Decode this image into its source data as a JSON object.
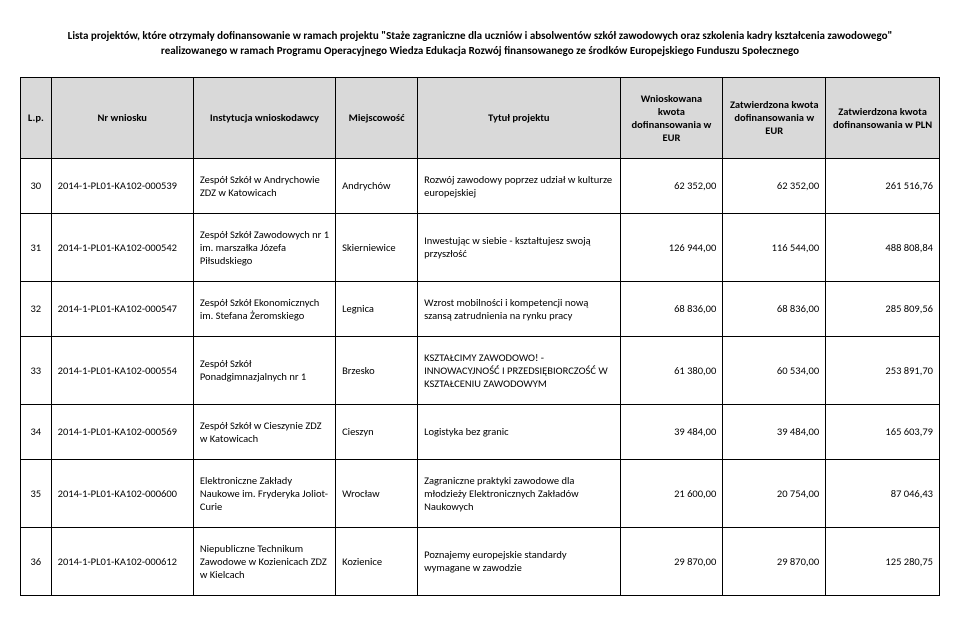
{
  "header": "Lista projektów, które otrzymały dofinansowanie w ramach projektu \"Staże zagraniczne dla uczniów i absolwentów szkół zawodowych oraz szkolenia kadry kształcenia zawodowego\" realizowanego w ramach Programu Operacyjnego Wiedza Edukacja Rozwój finansowanego ze środków Europejskiego Funduszu Społecznego",
  "columns": {
    "lp": "L.p.",
    "nr": "Nr wniosku",
    "inst": "Instytucja wnioskodawcy",
    "city": "Miejscowość",
    "title": "Tytuł projektu",
    "amt1": "Wnioskowana kwota dofinansowania w EUR",
    "amt2": "Zatwierdzona kwota dofinansowania w EUR",
    "amt3": "Zatwierdzona kwota dofinansowania w PLN"
  },
  "rows": [
    {
      "lp": "30",
      "nr": "2014-1-PL01-KA102-000539",
      "inst": "Zespół Szkół w Andrychowie ZDZ w Katowicach",
      "city": "Andrychów",
      "title": "Rozwój zawodowy poprzez udział w kulturze europejskiej",
      "a1": "62 352,00",
      "a2": "62 352,00",
      "a3": "261 516,76"
    },
    {
      "lp": "31",
      "nr": "2014-1-PL01-KA102-000542",
      "inst": "Zespół Szkół Zawodowych nr 1 im. marszałka Józefa Piłsudskiego",
      "city": "Skierniewice",
      "title": "Inwestując w siebie - kształtujesz swoją przyszłość",
      "a1": "126 944,00",
      "a2": "116 544,00",
      "a3": "488 808,84"
    },
    {
      "lp": "32",
      "nr": "2014-1-PL01-KA102-000547",
      "inst": "Zespół Szkół Ekonomicznych im. Stefana Żeromskiego",
      "city": "Legnica",
      "title": "Wzrost mobilności i kompetencji nową szansą zatrudnienia na rynku pracy",
      "a1": "68 836,00",
      "a2": "68 836,00",
      "a3": "285 809,56"
    },
    {
      "lp": "33",
      "nr": "2014-1-PL01-KA102-000554",
      "inst": "Zespół Szkół Ponadgimnazjalnych nr 1",
      "city": "Brzesko",
      "title": "KSZTAŁCIMY ZAWODOWO! - INNOWACYJNOŚĆ I PRZEDSIĘBIORCZOŚĆ W KSZTAŁCENIU ZAWODOWYM",
      "a1": "61 380,00",
      "a2": "60 534,00",
      "a3": "253 891,70"
    },
    {
      "lp": "34",
      "nr": "2014-1-PL01-KA102-000569",
      "inst": "Zespół Szkół w Cieszynie ZDZ w Katowicach",
      "city": "Cieszyn",
      "title": "Logistyka bez granic",
      "a1": "39 484,00",
      "a2": "39 484,00",
      "a3": "165 603,79"
    },
    {
      "lp": "35",
      "nr": "2014-1-PL01-KA102-000600",
      "inst": "Elektroniczne Zakłady Naukowe im. Fryderyka Joliot-Curie",
      "city": "Wrocław",
      "title": "Zagraniczne praktyki zawodowe dla młodzieży Elektronicznych Zakładów Naukowych",
      "a1": "21 600,00",
      "a2": "20 754,00",
      "a3": "87 046,43"
    },
    {
      "lp": "36",
      "nr": "2014-1-PL01-KA102-000612",
      "inst": "Niepubliczne Technikum Zawodowe w Kozienicach ZDZ w Kielcach",
      "city": "Kozienice",
      "title": "Poznajemy europejskie standardy wymagane w zawodzie",
      "a1": "29 870,00",
      "a2": "29 870,00",
      "a3": "125 280,75"
    }
  ]
}
